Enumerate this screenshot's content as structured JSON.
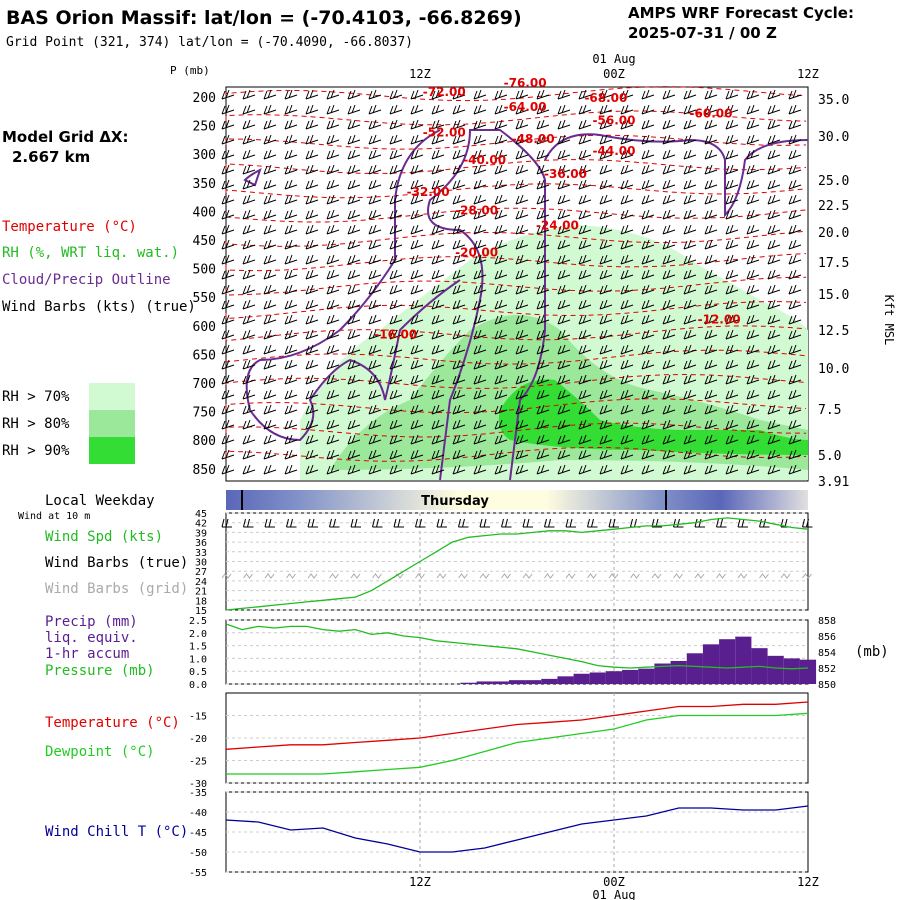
{
  "header": {
    "title": "BAS Orion Massif:  lat/lon = (-70.4103, -66.8269)",
    "grid_point": "Grid Point (321, 374) lat/lon = (-70.4090, -66.8037)",
    "cycle_label": "AMPS WRF Forecast Cycle:",
    "cycle_value": "2025-07-31 / 00  Z"
  },
  "sidebar": {
    "model_grid_label": "Model Grid ΔX:",
    "model_grid_value": "2.667 km",
    "legend_temperature": "Temperature (°C)",
    "legend_rh": "RH (%, WRT liq. wat.)",
    "legend_cloud": "Cloud/Precip Outline",
    "legend_wind": "Wind Barbs (kts) (true)",
    "rh_levels": [
      {
        "label": "RH > 70%",
        "color": "#d2fad2"
      },
      {
        "label": "RH > 80%",
        "color": "#9be89b"
      },
      {
        "label": "RH > 90%",
        "color": "#33dd33"
      }
    ]
  },
  "colors": {
    "temperature": "#e00000",
    "rh": "#33cc33",
    "cloud": "#6a2c91",
    "wind": "#000000",
    "wind_grid": "#aaaaaa",
    "precip": "#5a1f8f",
    "pressure": "#22bb22",
    "dewpoint": "#22cc22",
    "windchill": "#000099"
  },
  "chart_data": [
    {
      "type": "line",
      "panel": "cross-section",
      "ylabel": "P (mb)",
      "ylabel_right": "Kft MSL",
      "y_ticks": [
        "200",
        "250",
        "300",
        "350",
        "400",
        "450",
        "500",
        "550",
        "600",
        "650",
        "700",
        "750",
        "800",
        "850"
      ],
      "right_ticks": [
        "35.0",
        "30.0",
        "25.0",
        "22.5",
        "20.0",
        "17.5",
        "15.0",
        "12.5",
        "10.0",
        "7.5",
        "5.0",
        "3.91"
      ],
      "x_ticks_top": [
        "12Z",
        "00Z",
        "12Z"
      ],
      "date_top": "01 Aug",
      "temperature_labels": [
        {
          "label": "-76.00",
          "x_hr": 18.5,
          "p": 200
        },
        {
          "label": "-72.00",
          "x_hr": 13.5,
          "p": 215
        },
        {
          "label": "-68.00",
          "x_hr": 23.5,
          "p": 225
        },
        {
          "label": "-64.00",
          "x_hr": 18.5,
          "p": 240
        },
        {
          "label": "-60.00",
          "x_hr": 30.0,
          "p": 250
        },
        {
          "label": "-56.00",
          "x_hr": 24.0,
          "p": 262
        },
        {
          "label": "-52.00",
          "x_hr": 13.5,
          "p": 282
        },
        {
          "label": "-48.00",
          "x_hr": 19.0,
          "p": 292
        },
        {
          "label": "-44.00",
          "x_hr": 24.0,
          "p": 312
        },
        {
          "label": "-40.00",
          "x_hr": 16.0,
          "p": 327
        },
        {
          "label": "-36.00",
          "x_hr": 21.0,
          "p": 350
        },
        {
          "label": "-32.00",
          "x_hr": 12.5,
          "p": 380
        },
        {
          "label": "-28.00",
          "x_hr": 15.5,
          "p": 410
        },
        {
          "label": "-24.00",
          "x_hr": 20.5,
          "p": 435
        },
        {
          "label": "-20.00",
          "x_hr": 15.5,
          "p": 480
        },
        {
          "label": "-16.00",
          "x_hr": 10.5,
          "p": 615
        },
        {
          "label": "-12.00",
          "x_hr": 30.5,
          "p": 590
        }
      ],
      "rh_levels": [
        "RH > 70%",
        "RH > 80%",
        "RH > 90%"
      ]
    },
    {
      "type": "bar",
      "panel": "local-weekday",
      "title": "Local Weekday",
      "day_label": "Thursday"
    },
    {
      "type": "line",
      "panel": "wind-10m",
      "title": "Wind at 10 m",
      "series_labels": [
        "Wind Spd (kts)",
        "Wind Barbs (true)",
        "Wind Barbs (grid)"
      ],
      "y_ticks": [
        "45",
        "42",
        "39",
        "36",
        "33",
        "30",
        "27",
        "24",
        "21",
        "18",
        "15"
      ],
      "ylim": [
        15,
        45
      ],
      "x_hours": [
        0,
        1,
        2,
        3,
        4,
        5,
        6,
        7,
        8,
        9,
        10,
        11,
        12,
        13,
        14,
        15,
        16,
        17,
        18,
        19,
        20,
        21,
        22,
        23,
        24,
        25,
        26,
        27,
        28,
        29,
        30,
        31,
        32,
        33,
        34,
        35,
        36
      ],
      "wind_speed": [
        15,
        15.5,
        16,
        16.5,
        17,
        17.5,
        18,
        18.5,
        19,
        21,
        24,
        27,
        30,
        33,
        36,
        37.5,
        38,
        38.5,
        38.5,
        39,
        39.5,
        39.5,
        39,
        39.5,
        40,
        40.5,
        41,
        41,
        41.5,
        42,
        43,
        43.5,
        43,
        42.5,
        41.5,
        40.5,
        40
      ]
    },
    {
      "type": "bar",
      "panel": "precip-pressure",
      "series_labels": [
        "Precip (mm)",
        "liq. equiv.",
        "1-hr accum",
        "Pressure (mb)"
      ],
      "y_ticks_left": [
        "2.5",
        "2.0",
        "1.5",
        "1.0",
        "0.5",
        "0.0"
      ],
      "y_ticks_right": [
        "858",
        "856",
        "854",
        "852",
        "850"
      ],
      "unit_right": "(mb)",
      "precip_ylim": [
        0,
        2.5
      ],
      "pressure_ylim": [
        850,
        858
      ],
      "x_hours": [
        0,
        1,
        2,
        3,
        4,
        5,
        6,
        7,
        8,
        9,
        10,
        11,
        12,
        13,
        14,
        15,
        16,
        17,
        18,
        19,
        20,
        21,
        22,
        23,
        24,
        25,
        26,
        27,
        28,
        29,
        30,
        31,
        32,
        33,
        34,
        35,
        36
      ],
      "precip": [
        0,
        0,
        0,
        0,
        0,
        0,
        0,
        0,
        0,
        0,
        0,
        0,
        0,
        0,
        0,
        0.05,
        0.1,
        0.1,
        0.15,
        0.15,
        0.2,
        0.3,
        0.4,
        0.45,
        0.5,
        0.55,
        0.6,
        0.8,
        0.9,
        1.2,
        1.55,
        1.75,
        1.85,
        1.4,
        1.1,
        1.0,
        0.95
      ],
      "pressure": [
        857.5,
        856.8,
        857.2,
        857,
        857.2,
        857.2,
        856.8,
        856.6,
        856.8,
        856.2,
        856.4,
        856,
        855.8,
        855.4,
        855.2,
        855,
        854.8,
        854.6,
        854.4,
        854,
        853.6,
        853.2,
        852.8,
        852.3,
        852.1,
        852,
        852.1,
        852.2,
        852.3,
        852.2,
        852.1,
        852,
        852.1,
        852.2,
        852,
        851.9,
        852
      ]
    },
    {
      "type": "line",
      "panel": "temperature-dewpoint",
      "series_labels": [
        "Temperature (°C)",
        "Dewpoint (°C)"
      ],
      "y_ticks": [
        "-15",
        "-20",
        "-25",
        "-30"
      ],
      "ylim": [
        -30,
        -10
      ],
      "x_hours": [
        0,
        2,
        4,
        6,
        8,
        10,
        12,
        14,
        16,
        18,
        20,
        22,
        24,
        26,
        28,
        30,
        32,
        34,
        36
      ],
      "temperature": [
        -22.5,
        -22,
        -21.5,
        -21.5,
        -21,
        -20.5,
        -20,
        -19,
        -18,
        -17,
        -16.5,
        -16,
        -15,
        -14,
        -13,
        -13,
        -12.5,
        -12.5,
        -12
      ],
      "dewpoint": [
        -28,
        -28,
        -28,
        -28,
        -27.5,
        -27,
        -26.5,
        -25,
        -23,
        -21,
        -20,
        -19,
        -18,
        -16,
        -15,
        -15,
        -15,
        -15,
        -14.5
      ]
    },
    {
      "type": "line",
      "panel": "wind-chill",
      "series_labels": [
        "Wind Chill T (°C)"
      ],
      "y_ticks": [
        "-35",
        "-40",
        "-45",
        "-50",
        "-55"
      ],
      "ylim": [
        -55,
        -35
      ],
      "x_hours": [
        0,
        2,
        4,
        6,
        8,
        10,
        12,
        14,
        16,
        18,
        20,
        22,
        24,
        26,
        28,
        30,
        32,
        34,
        36
      ],
      "wind_chill": [
        -42,
        -42.5,
        -44.5,
        -44,
        -46.5,
        -48,
        -50,
        -50,
        -49,
        -47,
        -45,
        -43,
        -42,
        -41,
        -39,
        -39,
        -39.5,
        -39.5,
        -38.5
      ],
      "x_ticks_bottom": [
        "12Z",
        "00Z",
        "12Z"
      ],
      "date_bottom": "01 Aug"
    }
  ]
}
